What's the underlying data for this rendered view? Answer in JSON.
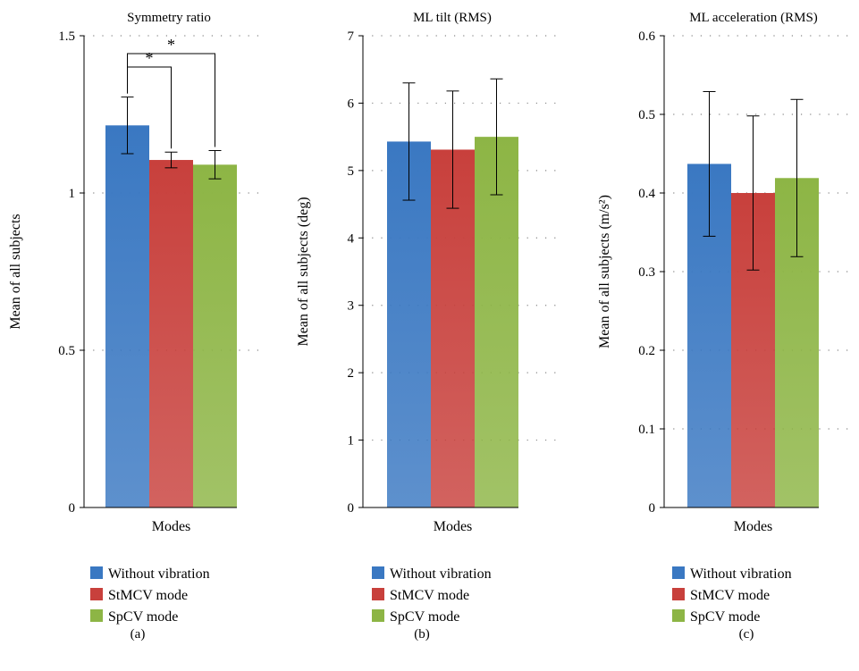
{
  "colors": {
    "without_vibration": "#3a78c2",
    "stmcv": "#c8403c",
    "spcv": "#8db545",
    "axis": "#000000",
    "grid": "#888888"
  },
  "chart_data": [
    {
      "type": "bar",
      "panel_label": "(a)",
      "title": "Symmetry ratio",
      "xlabel": "Modes",
      "ylabel": "Mean of all subjects",
      "ylim": [
        0,
        1.5
      ],
      "yticks": [
        0,
        0.5,
        1,
        1.5
      ],
      "ytick_labels": [
        "0",
        "0.5",
        "1",
        "1.5"
      ],
      "grid": true,
      "series": [
        {
          "name": "Without vibration",
          "value": 1.215,
          "error": 0.09
        },
        {
          "name": "StMCV mode",
          "value": 1.105,
          "error": 0.025
        },
        {
          "name": "SpCV mode",
          "value": 1.09,
          "error": 0.045
        }
      ],
      "significance": [
        {
          "from": 0,
          "to": 1,
          "label": "*"
        },
        {
          "from": 0,
          "to": 2,
          "label": "*"
        }
      ],
      "legend": [
        "Without vibration",
        "StMCV mode",
        "SpCV mode"
      ]
    },
    {
      "type": "bar",
      "panel_label": "(b)",
      "title": "ML tilt (RMS)",
      "xlabel": "Modes",
      "ylabel": "Mean of all subjects (deg)",
      "ylim": [
        0,
        7
      ],
      "yticks": [
        0,
        1,
        2,
        3,
        4,
        5,
        6,
        7
      ],
      "ytick_labels": [
        "0",
        "1",
        "2",
        "3",
        "4",
        "5",
        "6",
        "7"
      ],
      "grid": true,
      "series": [
        {
          "name": "Without vibration",
          "value": 5.43,
          "error": 0.87
        },
        {
          "name": "StMCV mode",
          "value": 5.31,
          "error": 0.87
        },
        {
          "name": "SpCV mode",
          "value": 5.5,
          "error": 0.86
        }
      ],
      "significance": [],
      "legend": [
        "Without vibration",
        "StMCV mode",
        "SpCV mode"
      ]
    },
    {
      "type": "bar",
      "panel_label": "(c)",
      "title": "ML acceleration (RMS)",
      "xlabel": "Modes",
      "ylabel": "Mean of all subjects (m/s²)",
      "ylim": [
        0,
        0.6
      ],
      "yticks": [
        0,
        0.1,
        0.2,
        0.3,
        0.4,
        0.5,
        0.6
      ],
      "ytick_labels": [
        "0",
        "0.1",
        "0.2",
        "0.3",
        "0.4",
        "0.5",
        "0.6"
      ],
      "grid": true,
      "series": [
        {
          "name": "Without vibration",
          "value": 0.437,
          "error": 0.092
        },
        {
          "name": "StMCV mode",
          "value": 0.4,
          "error": 0.098
        },
        {
          "name": "SpCV mode",
          "value": 0.419,
          "error": 0.1
        }
      ],
      "significance": [],
      "legend": [
        "Without vibration",
        "StMCV mode",
        "SpCV mode"
      ]
    }
  ]
}
